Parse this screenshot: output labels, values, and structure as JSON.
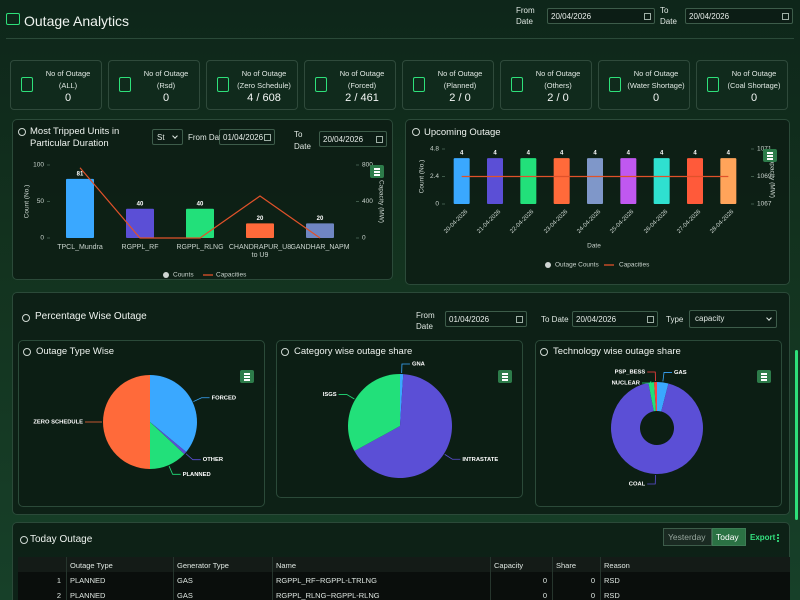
{
  "header": {
    "title": "Outage Analytics",
    "from_label": [
      "From",
      "Date"
    ],
    "from_date": "20/04/2026",
    "to_label": [
      "To",
      "Date"
    ],
    "to_date": "20/04/2026"
  },
  "kpis": [
    {
      "label": "No of Outage",
      "qualifier": "(ALL)",
      "value": 0
    },
    {
      "label": "No of Outage",
      "qualifier": "(Rsd)",
      "value": 0
    },
    {
      "label": "No of Outage",
      "qualifier": "(Zero Schedule)",
      "value": "4 / 608"
    },
    {
      "label": "No of Outage",
      "qualifier": "(Forced)",
      "value": "2 / 461"
    },
    {
      "label": "No of Outage",
      "qualifier": "(Planned)",
      "value": "2 / 0"
    },
    {
      "label": "No of Outage",
      "qualifier": "(Others)",
      "value": "2 / 0"
    },
    {
      "label": "No of Outage",
      "qualifier": "(Water Shortage)",
      "value": 0
    },
    {
      "label": "No of Outage",
      "qualifier": "(Coal Shortage)",
      "value": 0
    }
  ],
  "filters": {
    "tripped": {
      "select": "St",
      "from_label": "From Date",
      "from_date": "01/04/2026",
      "to_label": [
        "To",
        "Date"
      ],
      "to_date": "20/04/2026"
    },
    "percentage": {
      "title": "Percentage Wise Outage",
      "from_label": [
        "From",
        "Date"
      ],
      "from_date": "01/04/2026",
      "to_label": "To Date",
      "to_date": "20/04/2026",
      "type_label": "Type",
      "type": "capacity"
    }
  },
  "chart_data": [
    {
      "type": "bar",
      "title": "Most Tripped Units in Particular Duration",
      "categories": [
        "TPCL_Mundra",
        "RGPPL_RF",
        "RGPPL_RLNG",
        "CHANDRAPUR_U8 to U9",
        "GANDHAR_NAPM"
      ],
      "ylabel": "Count (No.)",
      "y2label": "Capacity (MW)",
      "ylim": [
        0,
        100
      ],
      "yticks": [
        0,
        50,
        100
      ],
      "y2lim": [
        0,
        800
      ],
      "y2ticks": [
        0,
        400,
        800
      ],
      "series": [
        {
          "name": "Counts",
          "type": "bar",
          "colors": [
            "#3aa8ff",
            "#5b4fd6",
            "#22e07a",
            "#ff6a3a",
            "#6f86c2"
          ],
          "values": [
            81,
            40,
            40,
            20,
            20
          ]
        },
        {
          "name": "Capacities",
          "type": "line",
          "axis": "y2",
          "color": "#e0522a",
          "values": [
            770,
            0,
            0,
            460,
            0
          ]
        }
      ]
    },
    {
      "type": "bar",
      "title": "Upcoming Outage",
      "categories": [
        "20-04-2026",
        "21-04-2026",
        "22-04-2026",
        "23-04-2026",
        "24-04-2026",
        "25-04-2026",
        "26-04-2026",
        "27-04-2026",
        "28-04-2026"
      ],
      "xlabel": "Date",
      "ylabel": "Count (No.)",
      "y2label": "Capacity (MW)",
      "ylim": [
        0,
        4.8
      ],
      "yticks": [
        0,
        2.4,
        4.8
      ],
      "y2lim": [
        1067,
        1071
      ],
      "y2ticks": [
        1067,
        1069,
        1071
      ],
      "series": [
        {
          "name": "Outage Counts",
          "type": "bar",
          "colors": [
            "#3aa8ff",
            "#5b4fd6",
            "#22e07a",
            "#ff6a3a",
            "#7f97c9",
            "#c058f0",
            "#2fe0d0",
            "#ff5a3a",
            "#ffa45a"
          ],
          "values": [
            4,
            4,
            4,
            4,
            4,
            4,
            4,
            4,
            4
          ]
        },
        {
          "name": "Capacities",
          "type": "line",
          "axis": "y2",
          "color": "#e0522a",
          "values": [
            1069,
            1069,
            1069,
            1069,
            1069,
            1069,
            1069,
            1069,
            1069
          ]
        }
      ]
    },
    {
      "type": "pie",
      "title": "Outage Type Wise",
      "categories": [
        "FORCED",
        "OTHER",
        "PLANNED",
        "ZERO SCHEDULE"
      ],
      "values": [
        36,
        1,
        13,
        50
      ],
      "colors": [
        "#3aa8ff",
        "#5b4fd6",
        "#22e07a",
        "#ff6a3a"
      ]
    },
    {
      "type": "pie",
      "title": "Category wise outage share",
      "categories": [
        "GNA",
        "INTRASTATE",
        "ISGS"
      ],
      "values": [
        1,
        66,
        33
      ],
      "colors": [
        "#3aa8ff",
        "#5b4fd6",
        "#22e07a"
      ]
    },
    {
      "type": "donut",
      "title": "Technology wise outage share",
      "categories": [
        "GAS",
        "COAL",
        "NUCLEAR",
        "PSP_BESS"
      ],
      "values": [
        4,
        93,
        2,
        1
      ],
      "colors": [
        "#3aa8ff",
        "#5b4fd6",
        "#22e07a",
        "#ff4040"
      ]
    }
  ],
  "table": {
    "title": "Today Outage",
    "buttons": [
      "Yesterday",
      "Today"
    ],
    "export": "Export",
    "columns": [
      "Outage Type",
      "Generator Type",
      "Name",
      "Capacity",
      "Share",
      "Reason"
    ],
    "rows": [
      [
        1,
        "PLANNED",
        "GAS",
        "RGPPL_RF~RGPPL-LTRLNG",
        0,
        0,
        "RSD"
      ],
      [
        2,
        "PLANNED",
        "GAS",
        "RGPPL_RLNG~RGPPL-RLNG",
        0,
        0,
        "RSD"
      ]
    ]
  }
}
